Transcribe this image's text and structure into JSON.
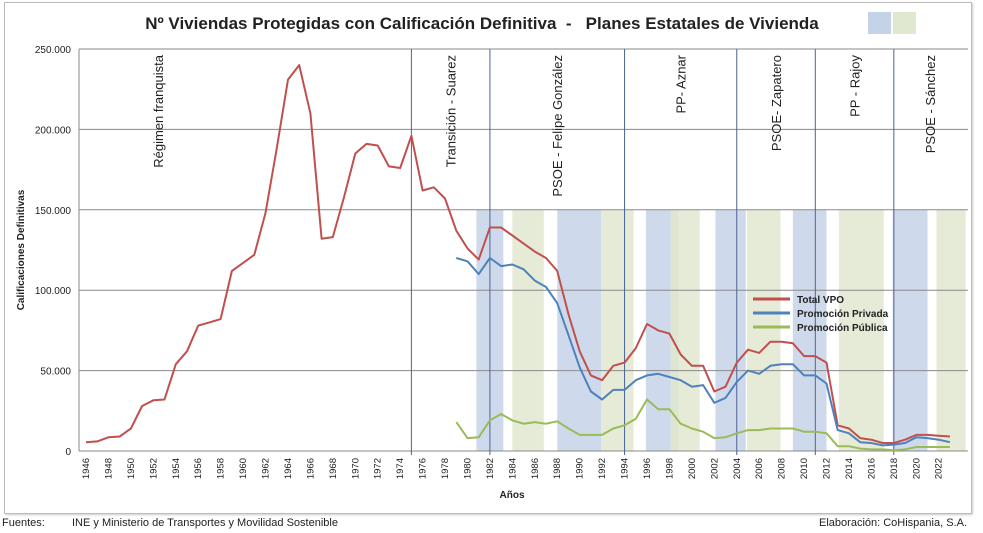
{
  "chart_data": {
    "type": "line",
    "title": "Nº Viviendas Protegidas con Calificación Definitiva  -   Planes Estatales de Vivienda",
    "xlabel": "Años",
    "ylabel": "Calificaciones  Definitivas",
    "ylim": [
      0,
      250000
    ],
    "yticks": [
      0,
      50000,
      100000,
      150000,
      200000,
      250000
    ],
    "ytick_labels": [
      "0",
      "50.000",
      "100.000",
      "150.000",
      "200.000",
      "250.000"
    ],
    "xlim": [
      1946,
      2023
    ],
    "xticks": [
      1946,
      1948,
      1950,
      1952,
      1954,
      1956,
      1958,
      1960,
      1962,
      1964,
      1966,
      1968,
      1970,
      1972,
      1974,
      1976,
      1978,
      1980,
      1982,
      1984,
      1986,
      1988,
      1990,
      1992,
      1994,
      1996,
      1998,
      2000,
      2002,
      2004,
      2006,
      2008,
      2010,
      2012,
      2014,
      2016,
      2018,
      2020,
      2022
    ],
    "grid": true,
    "legend_placement": "center-right",
    "series": [
      {
        "name": "Total VPO",
        "color": "#c0504d",
        "start_year": 1946,
        "values": [
          5500,
          6000,
          8500,
          9000,
          14000,
          28000,
          31500,
          32000,
          54000,
          62000,
          78000,
          80000,
          82000,
          112000,
          117000,
          122000,
          148000,
          188000,
          231000,
          240000,
          210000,
          132000,
          133000,
          158000,
          185000,
          191000,
          190000,
          177000,
          176000,
          196000,
          162000,
          164000,
          157000,
          137000,
          126000,
          119000,
          139000,
          139000,
          134000,
          129000,
          124000,
          120000,
          112000,
          85000,
          62000,
          47000,
          44000,
          53000,
          55000,
          64000,
          79000,
          75000,
          73000,
          60000,
          53000,
          53000,
          37000,
          40000,
          55000,
          63000,
          61000,
          68000,
          68000,
          67000,
          59000,
          59000,
          55000,
          16000,
          14000,
          8000,
          7000,
          5000,
          5000,
          7000,
          10000,
          10000,
          9500,
          9000
        ]
      },
      {
        "name": "Promoción Privada",
        "color": "#4f81bd",
        "start_year": 1979,
        "values": [
          120000,
          118000,
          110000,
          120000,
          115000,
          116000,
          113000,
          106000,
          102000,
          92000,
          72000,
          52000,
          37000,
          32000,
          38000,
          38000,
          44000,
          47000,
          48000,
          46000,
          44000,
          40000,
          41000,
          30000,
          33000,
          43000,
          50000,
          48000,
          53000,
          54000,
          54000,
          47000,
          47000,
          42000,
          13000,
          11000,
          5500,
          5000,
          3500,
          4000,
          5000,
          8500,
          8000,
          7000,
          5500
        ]
      },
      {
        "name": "Promoción Pública",
        "color": "#9bbb59",
        "start_year": 1979,
        "values": [
          18000,
          8000,
          8500,
          19000,
          23000,
          19000,
          17000,
          18000,
          17000,
          18500,
          14000,
          10000,
          10000,
          10000,
          14000,
          16000,
          20000,
          32000,
          26000,
          26000,
          17000,
          14000,
          12000,
          8000,
          8500,
          11000,
          13000,
          13000,
          14000,
          14000,
          14000,
          12000,
          12000,
          11000,
          3000,
          3000,
          1500,
          1000,
          1000,
          500,
          1000,
          2500,
          2500,
          2500,
          2500
        ]
      }
    ],
    "government_periods": [
      {
        "label": "Régimen franquista",
        "start": 1946,
        "end": 1975
      },
      {
        "label": "Transición - Suarez",
        "start": 1975,
        "end": 1982
      },
      {
        "label": "PSOE - Felipe González",
        "start": 1982,
        "end": 1994
      },
      {
        "label": "PP- Aznar",
        "start": 1994,
        "end": 2004
      },
      {
        "label": "PSOE- Zapatero",
        "start": 2004,
        "end": 2011
      },
      {
        "label": "PP - Rajoy",
        "start": 2011,
        "end": 2018
      },
      {
        "label": "PSOE - Sánchez",
        "start": 2018,
        "end": 2023
      }
    ],
    "housing_plans": [
      {
        "start": 1980.8,
        "end": 1983.2,
        "color": "#c5d3e8"
      },
      {
        "start": 1984.0,
        "end": 1986.8,
        "color": "#e0e8cf"
      },
      {
        "start": 1988.0,
        "end": 1991.9,
        "color": "#c5d3e8"
      },
      {
        "start": 1991.9,
        "end": 1994.8,
        "color": "#e0e8cf"
      },
      {
        "start": 1995.9,
        "end": 1998.8,
        "color": "#c5d3e8"
      },
      {
        "start": 1998.1,
        "end": 2000.7,
        "color": "#e0e8cf"
      },
      {
        "start": 2002.1,
        "end": 2004.8,
        "color": "#c5d3e8"
      },
      {
        "start": 2004.9,
        "end": 2007.9,
        "color": "#e0e8cf"
      },
      {
        "start": 2009.0,
        "end": 2012.0,
        "color": "#c5d3e8"
      },
      {
        "start": 2013.1,
        "end": 2017.1,
        "color": "#e0e8cf"
      },
      {
        "start": 2017.9,
        "end": 2021.0,
        "color": "#c5d3e8"
      },
      {
        "start": 2021.8,
        "end": 2024.4,
        "color": "#e0e8cf"
      }
    ],
    "plan_band_top": 150000,
    "title_swatches": [
      "#c5d3e8",
      "#e0e8cf"
    ]
  },
  "footer": {
    "sources_label": "Fuentes:",
    "sources_text": "INE y Ministerio de Transportes y Movilidad Sostenible",
    "credit": "Elaboración: CoHispania, S.A."
  }
}
